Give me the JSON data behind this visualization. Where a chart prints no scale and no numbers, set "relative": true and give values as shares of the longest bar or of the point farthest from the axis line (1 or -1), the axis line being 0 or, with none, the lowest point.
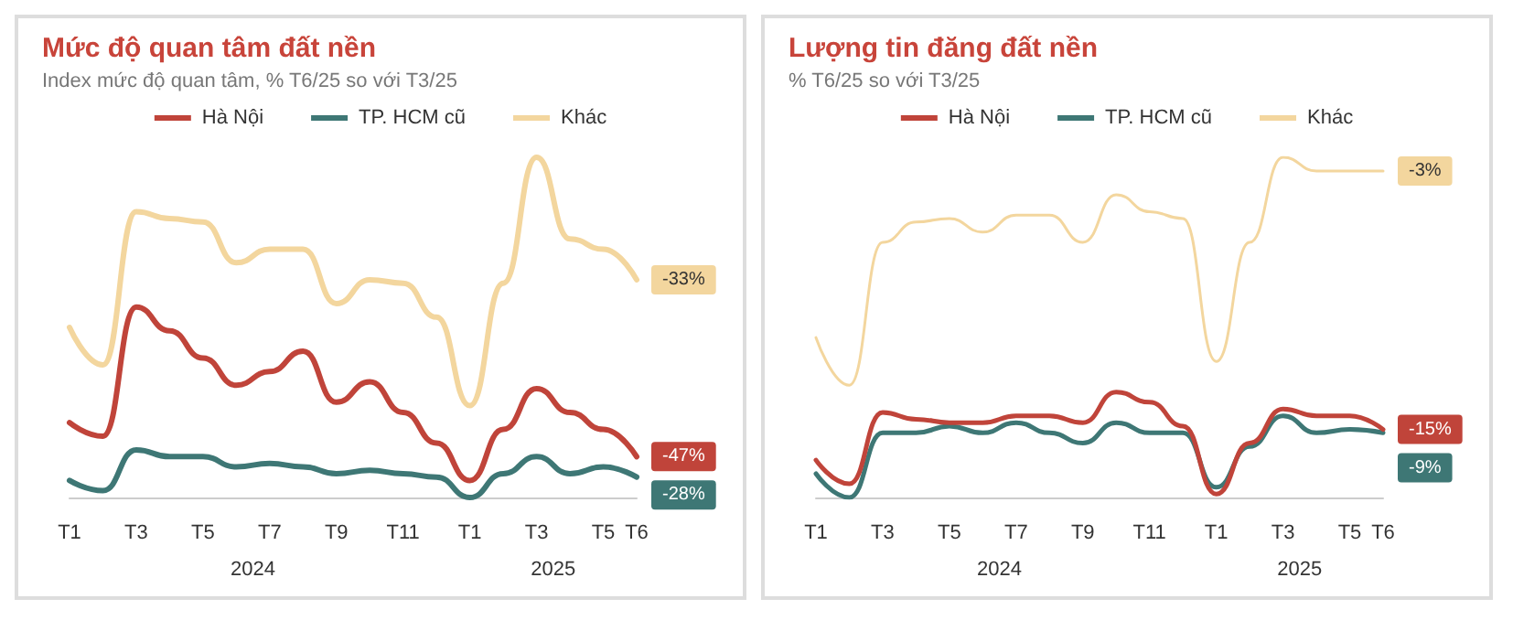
{
  "chart_data": [
    {
      "type": "line",
      "title": "Mức độ quan tâm đất nền",
      "subtitle": "Index mức độ quan tâm, % T6/25 so với T3/25",
      "relative": true,
      "legend": "top",
      "marker": "none",
      "line_style": "solid",
      "grid": false,
      "categories": [
        "T1",
        null,
        "T3",
        null,
        "T5",
        null,
        "T7",
        null,
        "T9",
        null,
        "T11",
        null,
        "T1",
        null,
        "T3",
        null,
        "T5",
        "T6"
      ],
      "annotations": [
        "2024",
        "2025",
        {
          "text": "-33%",
          "x": "T6",
          "y": 0.64
        },
        {
          "text": "-47%",
          "x": "T6",
          "y": 0.12
        },
        {
          "text": "-28%",
          "x": "T6",
          "y": 0.06
        }
      ],
      "series": [
        {
          "name": "Hà Nội",
          "color": "#c0443a",
          "values": [
            0.22,
            0.18,
            0.56,
            0.49,
            0.41,
            0.33,
            0.37,
            0.43,
            0.28,
            0.34,
            0.25,
            0.16,
            0.05,
            0.2,
            0.32,
            0.25,
            0.2,
            0.12
          ]
        },
        {
          "name": "TP. HCM cũ",
          "color": "#3e7775",
          "values": [
            0.05,
            0.02,
            0.14,
            0.12,
            0.12,
            0.09,
            0.1,
            0.09,
            0.07,
            0.08,
            0.07,
            0.06,
            0,
            0.07,
            0.12,
            0.07,
            0.09,
            0.06
          ]
        },
        {
          "name": "Khác",
          "color": "#f3d69e",
          "values": [
            0.5,
            0.39,
            0.84,
            0.82,
            0.81,
            0.69,
            0.73,
            0.73,
            0.57,
            0.64,
            0.63,
            0.53,
            0.27,
            0.63,
            1,
            0.76,
            0.73,
            0.64
          ]
        }
      ]
    },
    {
      "type": "line",
      "title": "Lượng tin đăng đất nền",
      "subtitle": "% T6/25 so với T3/25",
      "relative": true,
      "legend": "top",
      "marker": "none",
      "line_style": "solid",
      "grid": false,
      "categories": [
        "T1",
        null,
        "T3",
        null,
        "T5",
        null,
        "T7",
        null,
        "T9",
        null,
        "T11",
        null,
        "T1",
        null,
        "T3",
        null,
        "T5",
        "T6"
      ],
      "annotations": [
        "2024",
        "2025",
        {
          "text": "-3%",
          "x": "T6",
          "y": 0.96
        },
        {
          "text": "-15%",
          "x": "T6",
          "y": 0.2
        },
        {
          "text": "-9%",
          "x": "T6",
          "y": 0.19
        }
      ],
      "series": [
        {
          "name": "Hà Nội",
          "color": "#c0443a",
          "values": [
            0.11,
            0.04,
            0.25,
            0.23,
            0.22,
            0.22,
            0.24,
            0.24,
            0.22,
            0.31,
            0.28,
            0.21,
            0.01,
            0.16,
            0.26,
            0.24,
            0.24,
            0.2
          ]
        },
        {
          "name": "TP. HCM cũ",
          "color": "#3e7775",
          "values": [
            0.07,
            0,
            0.19,
            0.19,
            0.21,
            0.19,
            0.22,
            0.19,
            0.16,
            0.22,
            0.19,
            0.19,
            0.03,
            0.15,
            0.24,
            0.19,
            0.2,
            0.19
          ]
        },
        {
          "name": "Khác",
          "color": "#f3d69e",
          "values": [
            0.47,
            0.33,
            0.75,
            0.81,
            0.82,
            0.78,
            0.83,
            0.83,
            0.75,
            0.89,
            0.84,
            0.82,
            0.4,
            0.75,
            1,
            0.96,
            0.96,
            0.96
          ]
        }
      ]
    }
  ]
}
